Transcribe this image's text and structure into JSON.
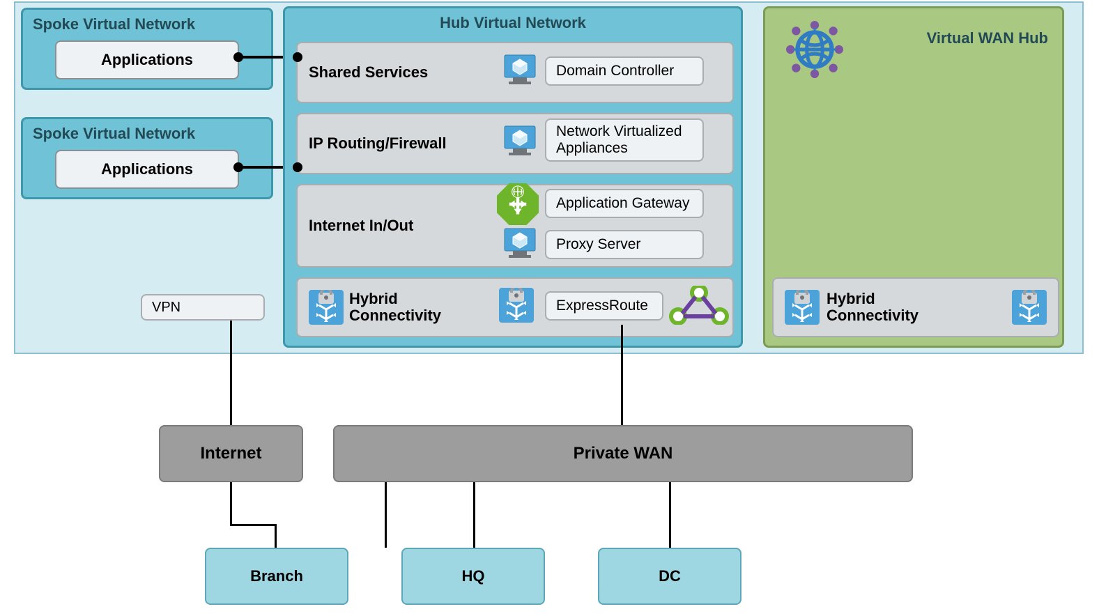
{
  "diagram": {
    "type": "network",
    "background_color": "#ffffff",
    "top_region_bg": "#d5ecf3",
    "top_region_border": "#8ac0cf",
    "spoke_bg": "#70c2d6",
    "spoke_border": "#3f97ac",
    "subbox_bg": "#eef2f5",
    "subbox_border": "#a9adb0",
    "service_bg": "#d5d9dc",
    "vwan_bg": "#a9c983",
    "vwan_border": "#7b9c52",
    "gray_bg": "#9d9d9d",
    "gray_border": "#7a7a7a",
    "site_bg": "#9ed6e2",
    "site_border": "#5ca7b8",
    "icon_blue": "#4ca3d9",
    "icon_green": "#6fb52c",
    "icon_purple": "#6b3fa0",
    "icon_purple_dot": "#7e57a3",
    "title_fontsize": 22,
    "label_fontsize": 21
  },
  "spoke1": {
    "title": "Spoke Virtual Network",
    "app": "Applications"
  },
  "spoke2": {
    "title": "Spoke Virtual Network",
    "app": "Applications"
  },
  "hub": {
    "title": "Hub Virtual Network",
    "shared": "Shared Services",
    "domain": "Domain Controller",
    "ipfw": "IP Routing/Firewall",
    "nva": "Network Virtualized Appliances",
    "internet": "Internet In/Out",
    "appgw": "Application Gateway",
    "proxy": "Proxy Server",
    "hybrid": "Hybrid Connectivity",
    "express": "ExpressRoute"
  },
  "vpn": "VPN",
  "vwan": {
    "title": "Virtual WAN Hub",
    "hybrid": "Hybrid Connectivity"
  },
  "bottom": {
    "internet": "Internet",
    "private_wan": "Private WAN",
    "branch": "Branch",
    "hq": "HQ",
    "dc": "DC"
  }
}
